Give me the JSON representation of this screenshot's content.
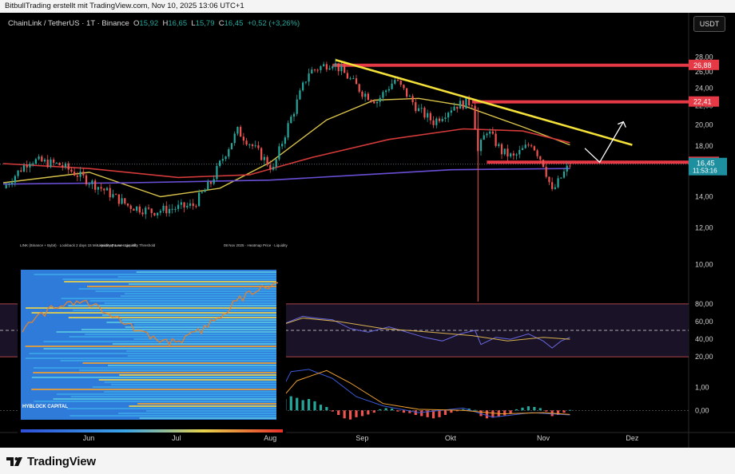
{
  "header": {
    "text": "BitbullTrading erstellt mit TradingView.com, Nov 10, 2025 13:06 UTC+1"
  },
  "legend": {
    "symbol": "ChainLink / TetherUS · 1T · Binance",
    "o_label": "O",
    "o": "15,92",
    "h_label": "H",
    "h": "16,65",
    "l_label": "L",
    "l": "15,79",
    "c_label": "C",
    "c": "16,45",
    "change": "+0,52 (+3,26%)"
  },
  "currency_button": "USDT",
  "brand": "TradingView",
  "inset": {
    "header_left": "LINK (Binance + Bybit) · Lookback 2 days 15 Min Heatmap Leverage: All",
    "header_mid": "Liquidity Pause · Liquidity Threshold",
    "header_right": "08 Nov 2025 · Heatmap Price · Liquidity",
    "watermark": "HYBLOCK CAPITAL"
  },
  "colors": {
    "up": "#26a69a",
    "down": "#ef5350",
    "ma_fast": "#d6c04a",
    "ma_mid": "#d43a3a",
    "ma_slow": "#6a4fd6",
    "trendline": "#f3e13a",
    "resistance": "#e53945",
    "rsi": "#6767e0",
    "rsi_ma": "#d6b150",
    "macd_pos": "#26a69a",
    "macd_neg": "#ef5350"
  },
  "chart_data": {
    "type": "candlestick",
    "symbol": "LINK/USDT",
    "timeframe": "1D",
    "y_axis": {
      "ticks": [
        10,
        12,
        14,
        16,
        18,
        20,
        22,
        24,
        26,
        28
      ],
      "tick_labels": [
        "10,00",
        "12,00",
        "14,00",
        "16,00",
        "18,00",
        "20,00",
        "22,00",
        "24,00",
        "26,00",
        "28,00"
      ],
      "range": [
        9.0,
        29.3
      ],
      "scale": "log"
    },
    "x_axis": {
      "tick_labels": [
        "Jun",
        "Jul",
        "Aug",
        "Sep",
        "Okt",
        "Nov",
        "Dez"
      ],
      "tick_dates": [
        "2025-06-01",
        "2025-07-01",
        "2025-08-01",
        "2025-09-01",
        "2025-10-01",
        "2025-11-01",
        "2025-12-01"
      ],
      "range": [
        "2025-05-03",
        "2025-12-20"
      ]
    },
    "price_labels": [
      {
        "value": 26.88,
        "text": "26,88",
        "kind": "level"
      },
      {
        "value": 22.41,
        "text": "22,41",
        "kind": "level"
      },
      {
        "value": 16.61,
        "text": "16,61",
        "kind": "level"
      },
      {
        "value": 16.45,
        "text": "16,45",
        "kind": "last",
        "sub": "11:53:16"
      }
    ],
    "anchors": [
      [
        "2025-05-03",
        14.6
      ],
      [
        "2025-05-12",
        16.8
      ],
      [
        "2025-05-22",
        16.4
      ],
      [
        "2025-06-05",
        14.6
      ],
      [
        "2025-06-14",
        13.4
      ],
      [
        "2025-06-22",
        13.0
      ],
      [
        "2025-07-06",
        13.4
      ],
      [
        "2025-07-12",
        15.0
      ],
      [
        "2025-07-21",
        19.4
      ],
      [
        "2025-07-26",
        18.0
      ],
      [
        "2025-08-02",
        16.0
      ],
      [
        "2025-08-09",
        21.5
      ],
      [
        "2025-08-14",
        26.0
      ],
      [
        "2025-08-22",
        27.3
      ],
      [
        "2025-09-01",
        23.5
      ],
      [
        "2025-09-06",
        22.5
      ],
      [
        "2025-09-12",
        25.0
      ],
      [
        "2025-09-20",
        21.5
      ],
      [
        "2025-09-25",
        20.3
      ],
      [
        "2025-10-02",
        22.0
      ],
      [
        "2025-10-08",
        22.4
      ],
      [
        "2025-10-10",
        17.5
      ],
      [
        "2025-10-13",
        19.5
      ],
      [
        "2025-10-18",
        17.5
      ],
      [
        "2025-10-22",
        17.0
      ],
      [
        "2025-10-28",
        18.3
      ],
      [
        "2025-11-01",
        16.5
      ],
      [
        "2025-11-04",
        14.3
      ],
      [
        "2025-11-07",
        15.4
      ],
      [
        "2025-11-10",
        16.45
      ]
    ],
    "flash_wick": {
      "date": "2025-10-10",
      "low": 8.6
    },
    "resistance_levels": [
      {
        "value": 26.88,
        "from": "2025-08-22"
      },
      {
        "value": 22.41,
        "from": "2025-10-08"
      },
      {
        "value": 16.61,
        "from": "2025-10-13"
      }
    ],
    "trendline": {
      "from": [
        "2025-08-23",
        27.6
      ],
      "to": [
        "2025-12-01",
        18.1
      ]
    },
    "projection_arrow": [
      [
        "2025-11-15",
        17.8
      ],
      [
        "2025-11-20",
        16.6
      ],
      [
        "2025-11-28",
        20.3
      ]
    ],
    "moving_averages": [
      {
        "key": "ma_fast",
        "points": [
          [
            "2025-05-03",
            15.0
          ],
          [
            "2025-06-01",
            15.8
          ],
          [
            "2025-06-25",
            14.0
          ],
          [
            "2025-07-15",
            14.6
          ],
          [
            "2025-08-01",
            16.6
          ],
          [
            "2025-08-20",
            20.5
          ],
          [
            "2025-09-05",
            22.6
          ],
          [
            "2025-09-20",
            22.8
          ],
          [
            "2025-10-05",
            22.0
          ],
          [
            "2025-10-25",
            19.8
          ],
          [
            "2025-11-10",
            18.1
          ]
        ]
      },
      {
        "key": "ma_mid",
        "points": [
          [
            "2025-05-03",
            16.5
          ],
          [
            "2025-06-01",
            16.1
          ],
          [
            "2025-07-01",
            15.4
          ],
          [
            "2025-07-25",
            15.6
          ],
          [
            "2025-08-15",
            17.0
          ],
          [
            "2025-09-10",
            18.6
          ],
          [
            "2025-10-05",
            19.6
          ],
          [
            "2025-10-25",
            19.4
          ],
          [
            "2025-11-10",
            18.3
          ]
        ]
      },
      {
        "key": "ma_slow",
        "points": [
          [
            "2025-05-03",
            14.9
          ],
          [
            "2025-06-15",
            15.0
          ],
          [
            "2025-08-01",
            15.2
          ],
          [
            "2025-09-01",
            15.6
          ],
          [
            "2025-10-01",
            16.0
          ],
          [
            "2025-11-10",
            16.1
          ]
        ]
      }
    ],
    "rsi": {
      "tick_labels": [
        "80,00",
        "60,00",
        "40,00",
        "20,00"
      ],
      "ticks": [
        80,
        60,
        40,
        20
      ],
      "range": [
        12,
        88
      ],
      "midline": 50,
      "series": [
        [
          "2025-08-01",
          62
        ],
        [
          "2025-08-06",
          58
        ],
        [
          "2025-08-12",
          66
        ],
        [
          "2025-08-16",
          64
        ],
        [
          "2025-08-22",
          62
        ],
        [
          "2025-08-28",
          52
        ],
        [
          "2025-09-03",
          48
        ],
        [
          "2025-09-10",
          54
        ],
        [
          "2025-09-16",
          48
        ],
        [
          "2025-09-22",
          42
        ],
        [
          "2025-09-28",
          38
        ],
        [
          "2025-10-04",
          46
        ],
        [
          "2025-10-09",
          50
        ],
        [
          "2025-10-11",
          34
        ],
        [
          "2025-10-16",
          42
        ],
        [
          "2025-10-21",
          40
        ],
        [
          "2025-10-27",
          46
        ],
        [
          "2025-11-01",
          38
        ],
        [
          "2025-11-04",
          30
        ],
        [
          "2025-11-07",
          38
        ],
        [
          "2025-11-10",
          42
        ]
      ],
      "ma": [
        [
          "2025-08-01",
          52
        ],
        [
          "2025-08-12",
          64
        ],
        [
          "2025-08-24",
          60
        ],
        [
          "2025-09-08",
          52
        ],
        [
          "2025-09-24",
          48
        ],
        [
          "2025-10-08",
          44
        ],
        [
          "2025-10-20",
          38
        ],
        [
          "2025-11-01",
          42
        ],
        [
          "2025-11-10",
          40
        ]
      ]
    },
    "macd": {
      "tick_labels": [
        "1,00",
        "0,00"
      ],
      "ticks": [
        1,
        0
      ],
      "range": [
        -0.9,
        1.9
      ],
      "histogram": [
        [
          "2025-08-02",
          0.2
        ],
        [
          "2025-08-04",
          0.35
        ],
        [
          "2025-08-06",
          0.5
        ],
        [
          "2025-08-08",
          0.62
        ],
        [
          "2025-08-10",
          0.55
        ],
        [
          "2025-08-12",
          0.45
        ],
        [
          "2025-08-14",
          0.5
        ],
        [
          "2025-08-16",
          0.4
        ],
        [
          "2025-08-18",
          0.25
        ],
        [
          "2025-08-20",
          0.15
        ],
        [
          "2025-08-22",
          -0.05
        ],
        [
          "2025-08-24",
          -0.2
        ],
        [
          "2025-08-26",
          -0.35
        ],
        [
          "2025-08-28",
          -0.4
        ],
        [
          "2025-08-30",
          -0.3
        ],
        [
          "2025-09-01",
          -0.25
        ],
        [
          "2025-09-03",
          -0.18
        ],
        [
          "2025-09-05",
          -0.1
        ],
        [
          "2025-09-07",
          0.05
        ],
        [
          "2025-09-09",
          0.1
        ],
        [
          "2025-09-11",
          0.08
        ],
        [
          "2025-09-13",
          -0.05
        ],
        [
          "2025-09-15",
          -0.1
        ],
        [
          "2025-09-17",
          -0.12
        ],
        [
          "2025-09-19",
          -0.2
        ],
        [
          "2025-09-21",
          -0.25
        ],
        [
          "2025-09-23",
          -0.3
        ],
        [
          "2025-09-25",
          -0.35
        ],
        [
          "2025-09-27",
          -0.3
        ],
        [
          "2025-09-29",
          -0.2
        ],
        [
          "2025-10-01",
          -0.1
        ],
        [
          "2025-10-03",
          -0.02
        ],
        [
          "2025-10-05",
          0.05
        ],
        [
          "2025-10-07",
          0.08
        ],
        [
          "2025-10-09",
          0.02
        ],
        [
          "2025-10-11",
          -0.25
        ],
        [
          "2025-10-13",
          -0.35
        ],
        [
          "2025-10-15",
          -0.32
        ],
        [
          "2025-10-17",
          -0.28
        ],
        [
          "2025-10-19",
          -0.22
        ],
        [
          "2025-10-21",
          -0.15
        ],
        [
          "2025-10-23",
          0.05
        ],
        [
          "2025-10-25",
          0.12
        ],
        [
          "2025-10-27",
          0.18
        ],
        [
          "2025-10-29",
          0.15
        ],
        [
          "2025-10-31",
          0.1
        ],
        [
          "2025-11-02",
          -0.05
        ],
        [
          "2025-11-04",
          -0.25
        ],
        [
          "2025-11-06",
          -0.2
        ],
        [
          "2025-11-08",
          -0.1
        ],
        [
          "2025-11-10",
          0.02
        ]
      ],
      "macd_line": [
        [
          "2025-08-02",
          0.2
        ],
        [
          "2025-08-08",
          1.7
        ],
        [
          "2025-08-14",
          1.8
        ],
        [
          "2025-08-22",
          1.4
        ],
        [
          "2025-08-30",
          0.6
        ],
        [
          "2025-09-08",
          0.2
        ],
        [
          "2025-09-20",
          -0.1
        ],
        [
          "2025-10-05",
          0.1
        ],
        [
          "2025-10-15",
          -0.3
        ],
        [
          "2025-10-28",
          -0.1
        ],
        [
          "2025-11-10",
          -0.2
        ]
      ],
      "signal_line": [
        [
          "2025-08-02",
          0.1
        ],
        [
          "2025-08-10",
          1.3
        ],
        [
          "2025-08-20",
          1.75
        ],
        [
          "2025-08-28",
          1.2
        ],
        [
          "2025-09-08",
          0.3
        ],
        [
          "2025-09-20",
          0.05
        ],
        [
          "2025-10-05",
          0.0
        ],
        [
          "2025-10-18",
          -0.15
        ],
        [
          "2025-11-01",
          -0.1
        ],
        [
          "2025-11-10",
          -0.18
        ]
      ]
    }
  }
}
